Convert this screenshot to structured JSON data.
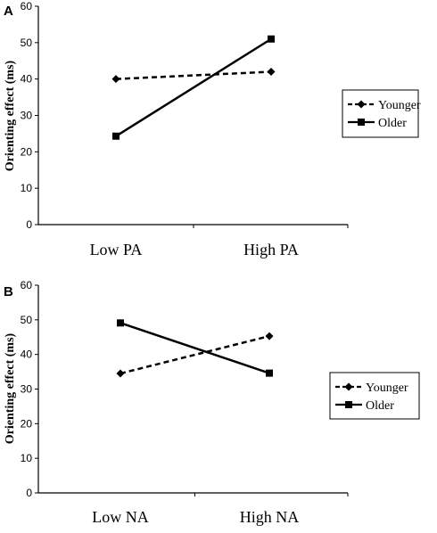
{
  "chart_data": [
    {
      "type": "line",
      "panel_label": "A",
      "categories": [
        "Low PA",
        "High PA"
      ],
      "series": [
        {
          "name": "Younger",
          "values": [
            40,
            42
          ],
          "line_style": "dashed",
          "marker": "diamond"
        },
        {
          "name": "Older",
          "values": [
            24.3,
            51
          ],
          "line_style": "solid",
          "marker": "square"
        }
      ],
      "ylabel": "Orienting effect (ms)",
      "ylim": [
        0,
        60
      ],
      "yticks": [
        0,
        10,
        20,
        30,
        40,
        50,
        60
      ],
      "grid": false,
      "legend_position": "right"
    },
    {
      "type": "line",
      "panel_label": "B",
      "categories": [
        "Low NA",
        "High NA"
      ],
      "series": [
        {
          "name": "Younger",
          "values": [
            34.5,
            45.3
          ],
          "line_style": "dashed",
          "marker": "diamond"
        },
        {
          "name": "Older",
          "values": [
            49.1,
            34.6
          ],
          "line_style": "solid",
          "marker": "square"
        }
      ],
      "ylabel": "Orienting effect (ms)",
      "ylim": [
        0,
        60
      ],
      "yticks": [
        0,
        10,
        20,
        30,
        40,
        50,
        60
      ],
      "grid": false,
      "legend_position": "right"
    }
  ]
}
